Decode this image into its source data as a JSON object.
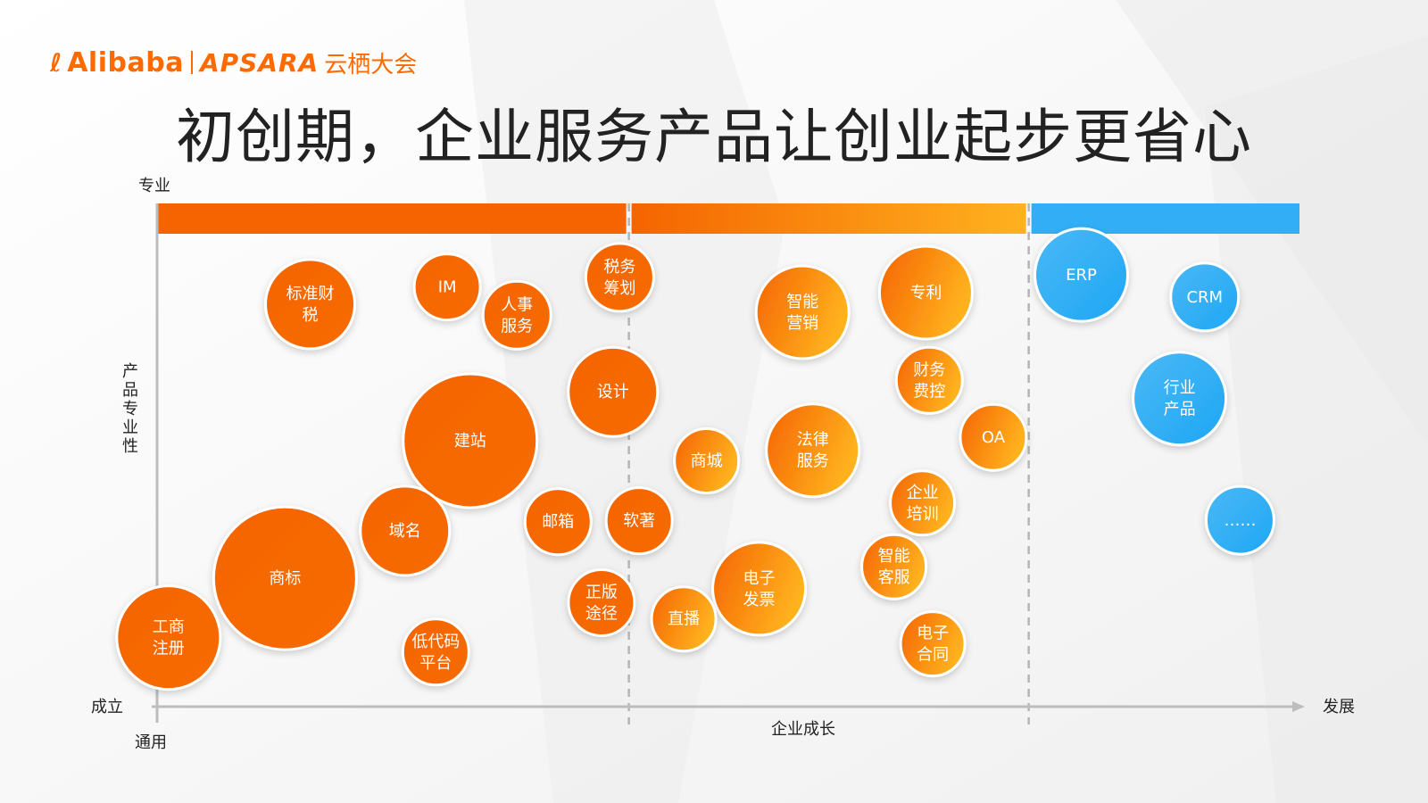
{
  "header": {
    "logo_mark": "ℓ",
    "logo_alibaba": "Alibaba",
    "logo_apsara": "APSARA",
    "logo_yunqi": "云栖大会"
  },
  "title": "初创期，企业服务产品让创业起步更省心",
  "colors": {
    "orange_dark": "#f56400",
    "orange_light": "#ffb21f",
    "blue": "#31aef5",
    "axis": "#bdbdbd"
  },
  "chart_data": {
    "type": "scatter",
    "xlabel": "企业成长",
    "ylabel": "产品专业性",
    "x_start_label": "成立",
    "x_end_label": "发展",
    "y_top_label": "专业",
    "y_bottom_label": "通用",
    "xlim": [
      0,
      100
    ],
    "ylim": [
      0,
      100
    ],
    "stage_dividers": [
      41.3,
      76.3
    ],
    "stages": [
      {
        "start": 0,
        "end": 41.3,
        "color_from": "#f56400",
        "color_to": "#f56400"
      },
      {
        "start": 41.3,
        "end": 76.3,
        "color_from": "#f56400",
        "color_to": "#ffb21f"
      },
      {
        "start": 76.3,
        "end": 100,
        "color_from": "#31aef5",
        "color_to": "#31aef5"
      }
    ],
    "bubbles": [
      {
        "label": "标准财\n税",
        "x": 13.4,
        "y": 84,
        "r": 50,
        "group": "early"
      },
      {
        "label": "IM",
        "x": 25.4,
        "y": 87.6,
        "r": 37,
        "group": "early"
      },
      {
        "label": "人事\n服务",
        "x": 31.5,
        "y": 81.7,
        "r": 38,
        "group": "early"
      },
      {
        "label": "税务\n筹划",
        "x": 40.5,
        "y": 89.6,
        "r": 38,
        "group": "early"
      },
      {
        "label": "设计",
        "x": 39.9,
        "y": 65.7,
        "r": 50,
        "group": "early"
      },
      {
        "label": "建站",
        "x": 27.4,
        "y": 55.5,
        "r": 75,
        "group": "early"
      },
      {
        "label": "域名",
        "x": 21.7,
        "y": 36.7,
        "r": 50,
        "group": "early"
      },
      {
        "label": "邮箱",
        "x": 35.1,
        "y": 38.6,
        "r": 37,
        "group": "early"
      },
      {
        "label": "软著",
        "x": 42.2,
        "y": 38.8,
        "r": 37,
        "group": "early"
      },
      {
        "label": "商标",
        "x": 11.2,
        "y": 26.8,
        "r": 80,
        "group": "early"
      },
      {
        "label": "工商\n注册",
        "x": 1.0,
        "y": 14.4,
        "r": 58,
        "group": "early"
      },
      {
        "label": "低代码\n平台",
        "x": 24.4,
        "y": 11.4,
        "r": 37,
        "group": "early"
      },
      {
        "label": "正版\n途径",
        "x": 38.9,
        "y": 21.7,
        "r": 37,
        "group": "early"
      },
      {
        "label": "智能\n营销",
        "x": 56.5,
        "y": 82.3,
        "r": 52,
        "group": "mid"
      },
      {
        "label": "专利",
        "x": 67.3,
        "y": 86.4,
        "r": 52,
        "group": "mid"
      },
      {
        "label": "财务\n费控",
        "x": 67.6,
        "y": 68.1,
        "r": 37,
        "group": "mid"
      },
      {
        "label": "商城",
        "x": 48.1,
        "y": 51.3,
        "r": 36,
        "group": "mid"
      },
      {
        "label": "法律\n服务",
        "x": 57.4,
        "y": 53.5,
        "r": 52,
        "group": "mid"
      },
      {
        "label": "OA",
        "x": 73.2,
        "y": 56.2,
        "r": 37,
        "group": "mid"
      },
      {
        "label": "企业\n培训",
        "x": 67.0,
        "y": 42.5,
        "r": 36,
        "group": "mid"
      },
      {
        "label": "智能\n客服",
        "x": 64.5,
        "y": 29.2,
        "r": 36,
        "group": "mid"
      },
      {
        "label": "电子\n发票",
        "x": 52.7,
        "y": 24.6,
        "r": 52,
        "group": "mid"
      },
      {
        "label": "直播",
        "x": 46.1,
        "y": 18.3,
        "r": 36,
        "group": "mid"
      },
      {
        "label": "电子\n合同",
        "x": 67.9,
        "y": 13.1,
        "r": 36,
        "group": "mid"
      },
      {
        "label": "ERP",
        "x": 80.9,
        "y": 90.1,
        "r": 52,
        "group": "late"
      },
      {
        "label": "CRM",
        "x": 91.7,
        "y": 85.5,
        "r": 38,
        "group": "late"
      },
      {
        "label": "行业\n产品",
        "x": 89.5,
        "y": 64.3,
        "r": 52,
        "group": "late"
      },
      {
        "label": "……",
        "x": 94.8,
        "y": 38.9,
        "r": 38,
        "group": "late"
      }
    ]
  }
}
